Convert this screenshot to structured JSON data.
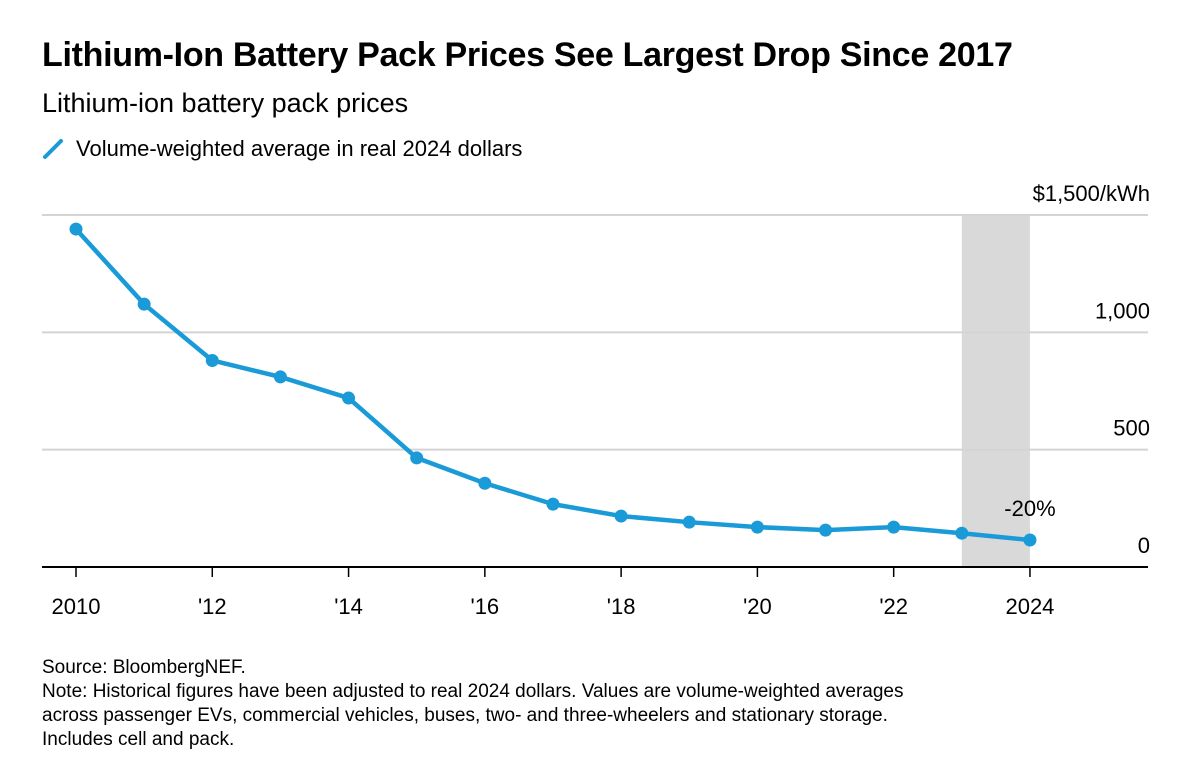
{
  "title": "Lithium-Ion Battery Pack Prices See Largest Drop Since 2017",
  "subtitle": "Lithium-ion battery pack prices",
  "legend": {
    "label": "Volume-weighted average in real 2024 dollars",
    "color": "#1a9bd7"
  },
  "annotation": {
    "text": "-20%",
    "year": 2024
  },
  "highlight": {
    "from": 2023,
    "to": 2024,
    "color": "#d9d9d9"
  },
  "chart_data": {
    "type": "line",
    "title": "Lithium-Ion Battery Pack Prices See Largest Drop Since 2017",
    "x": [
      2010,
      2011,
      2012,
      2013,
      2014,
      2015,
      2016,
      2017,
      2018,
      2019,
      2020,
      2021,
      2022,
      2023,
      2024
    ],
    "series": [
      {
        "name": "Volume-weighted average in real 2024 dollars",
        "values": [
          1440,
          1120,
          880,
          810,
          720,
          465,
          357,
          268,
          217,
          191,
          170,
          157,
          170,
          144,
          115
        ],
        "color": "#1a9bd7"
      }
    ],
    "ylim": [
      0,
      1500
    ],
    "xlim": [
      2009.5,
      2025.7
    ],
    "y_ticks": [
      {
        "value": 0,
        "label": "0"
      },
      {
        "value": 500,
        "label": "500"
      },
      {
        "value": 1000,
        "label": "1,000"
      },
      {
        "value": 1500,
        "label": "$1,500/kWh"
      }
    ],
    "x_ticks": [
      {
        "value": 2010,
        "label": "2010"
      },
      {
        "value": 2012,
        "label": "'12"
      },
      {
        "value": 2014,
        "label": "'14"
      },
      {
        "value": 2016,
        "label": "'16"
      },
      {
        "value": 2018,
        "label": "'18"
      },
      {
        "value": 2020,
        "label": "'20"
      },
      {
        "value": 2022,
        "label": "'22"
      },
      {
        "value": 2024,
        "label": "2024"
      }
    ],
    "grid": true,
    "y_axis_position": "right",
    "legend_position": "top-left"
  },
  "footer": {
    "source": "Source: BloombergNEF.",
    "note_lines": [
      "Note: Historical figures have been adjusted to real 2024 dollars. Values are volume-weighted averages",
      "across passenger EVs, commercial vehicles, buses, two- and three-wheelers and stationary storage.",
      "Includes cell and pack."
    ]
  }
}
